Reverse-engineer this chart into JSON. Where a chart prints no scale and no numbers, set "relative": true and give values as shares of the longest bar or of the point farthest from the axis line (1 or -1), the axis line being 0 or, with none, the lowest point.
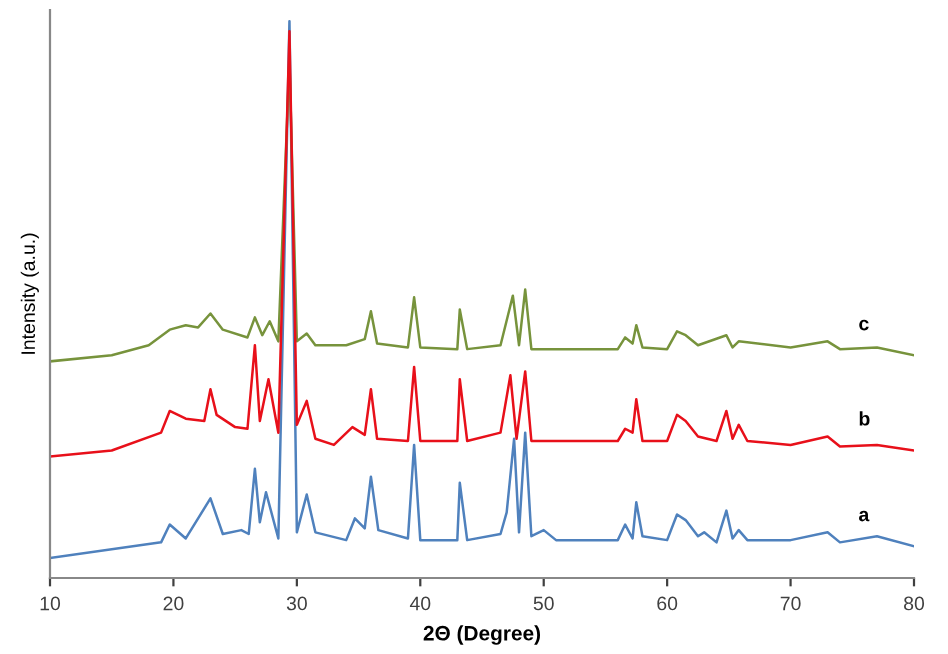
{
  "chart_data": {
    "type": "line",
    "relative": true,
    "xlabel": "2Θ (Degree)",
    "ylabel": "Intensity (a.u.)",
    "xlim": [
      10,
      80
    ],
    "xticks": [
      10,
      20,
      30,
      40,
      50,
      60,
      70,
      80
    ],
    "grid": false,
    "legend": false,
    "marker": "none",
    "line_style": "solid",
    "series": [
      {
        "name": "a",
        "color": "#4f81bd",
        "x": [
          10,
          19,
          19.7,
          21,
          23,
          24,
          25.5,
          26.1,
          26.6,
          27,
          27.5,
          28.5,
          29.4,
          30,
          30.8,
          31.5,
          34,
          34.7,
          35.5,
          36,
          36.6,
          39,
          39.5,
          40,
          43,
          43.2,
          43.8,
          46.5,
          47,
          47.6,
          48,
          48.5,
          49,
          50,
          51,
          56,
          56.6,
          57.2,
          57.5,
          58,
          60,
          60.8,
          61.5,
          62.5,
          63,
          64,
          64.8,
          65.3,
          65.8,
          66.5,
          70,
          73,
          74,
          77,
          80
        ],
        "values": [
          0.036,
          0.064,
          0.096,
          0.071,
          0.143,
          0.079,
          0.086,
          0.079,
          0.196,
          0.1,
          0.154,
          0.071,
          1.0,
          0.082,
          0.15,
          0.082,
          0.068,
          0.107,
          0.089,
          0.182,
          0.086,
          0.071,
          0.239,
          0.068,
          0.068,
          0.171,
          0.068,
          0.079,
          0.118,
          0.25,
          0.082,
          0.261,
          0.075,
          0.086,
          0.068,
          0.068,
          0.096,
          0.071,
          0.136,
          0.075,
          0.068,
          0.114,
          0.104,
          0.075,
          0.082,
          0.064,
          0.121,
          0.071,
          0.086,
          0.068,
          0.068,
          0.082,
          0.064,
          0.075,
          0.057
        ]
      },
      {
        "name": "c",
        "color": "#77933c",
        "x": [
          10,
          15,
          18,
          19.7,
          21,
          22,
          23,
          24,
          26,
          26.6,
          27.2,
          27.8,
          28.5,
          29.4,
          30,
          30.8,
          31.5,
          34,
          35.5,
          36,
          36.5,
          39,
          39.5,
          40,
          43,
          43.2,
          43.8,
          46.5,
          47.5,
          48,
          48.5,
          49,
          56,
          56.6,
          57.2,
          57.5,
          58,
          60,
          60.8,
          61.5,
          62.5,
          64.8,
          65.3,
          65.8,
          70,
          73,
          74,
          77,
          80
        ],
        "values": [
          0.389,
          0.4,
          0.418,
          0.446,
          0.454,
          0.45,
          0.475,
          0.446,
          0.432,
          0.468,
          0.436,
          0.461,
          0.425,
          0.929,
          0.425,
          0.439,
          0.418,
          0.418,
          0.429,
          0.479,
          0.421,
          0.414,
          0.504,
          0.414,
          0.411,
          0.482,
          0.411,
          0.418,
          0.507,
          0.418,
          0.518,
          0.411,
          0.411,
          0.432,
          0.421,
          0.454,
          0.414,
          0.411,
          0.443,
          0.436,
          0.418,
          0.436,
          0.414,
          0.425,
          0.414,
          0.425,
          0.411,
          0.414,
          0.4
        ]
      },
      {
        "name": "b",
        "color": "#e8101a",
        "x": [
          10,
          15,
          19,
          19.7,
          21,
          22.5,
          23,
          23.5,
          25,
          26,
          26.6,
          27,
          27.7,
          28.5,
          29.4,
          30,
          30.8,
          31.5,
          33,
          34.5,
          35.5,
          36,
          36.5,
          39,
          39.5,
          40,
          43,
          43.2,
          43.8,
          46.5,
          47.3,
          47.8,
          48.5,
          49,
          50,
          56,
          56.6,
          57.2,
          57.5,
          58,
          60,
          60.8,
          61.5,
          62.5,
          64,
          64.8,
          65.3,
          65.8,
          66.5,
          70,
          73,
          74,
          77,
          80
        ],
        "values": [
          0.218,
          0.229,
          0.261,
          0.3,
          0.286,
          0.282,
          0.339,
          0.293,
          0.271,
          0.268,
          0.418,
          0.282,
          0.357,
          0.261,
          0.982,
          0.275,
          0.318,
          0.25,
          0.239,
          0.271,
          0.257,
          0.339,
          0.25,
          0.246,
          0.379,
          0.246,
          0.246,
          0.357,
          0.246,
          0.261,
          0.364,
          0.25,
          0.371,
          0.246,
          0.246,
          0.246,
          0.268,
          0.261,
          0.321,
          0.246,
          0.246,
          0.293,
          0.282,
          0.254,
          0.246,
          0.3,
          0.25,
          0.275,
          0.246,
          0.239,
          0.254,
          0.236,
          0.239,
          0.229
        ]
      }
    ]
  }
}
